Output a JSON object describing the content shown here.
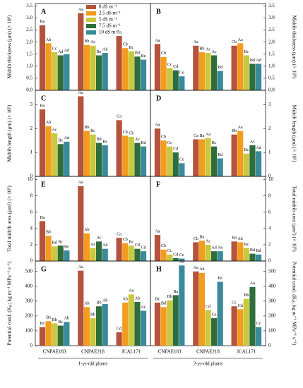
{
  "chart_data": {
    "type": "bar",
    "categories": [
      "CNPAE183",
      "CNPAE218",
      "JCAL171"
    ],
    "groups": [
      "1-yr-old plants",
      "2-yr-old plants"
    ],
    "series": [
      {
        "name": "0 dS m⁻¹",
        "color": "#b5533c"
      },
      {
        "name": "2.5 dS m⁻¹",
        "color": "#f39c1f"
      },
      {
        "name": "5 dS m⁻¹",
        "color": "#c9c83e"
      },
      {
        "name": "7.5 dS m⁻¹",
        "color": "#2f6e3c"
      },
      {
        "name": "10 dS m⁻¹",
        "color": "#3a8a9a"
      }
    ],
    "rows": [
      {
        "ylabel": "Midrib thickness (μm) (× 10³)",
        "ylim": [
          0,
          3.6
        ],
        "yticks": [
          {
            "value": 0,
            "label": "0.0"
          },
          0.5,
          {
            "value": 1,
            "label": "1.0"
          },
          1.5,
          {
            "value": 2,
            "label": "2.0"
          },
          2.5,
          {
            "value": 3,
            "label": "3.0"
          },
          3.5
        ],
        "panels": [
          {
            "label": "A",
            "series": [
              {
                "values": [
                  2.7,
                  3.2,
                  2.25
                ],
                "letters": [
                  "Ba",
                  "Aa",
                  "Ca"
                ]
              },
              {
                "values": [
                  1.95,
                  1.88,
                  1.75
                ],
                "letters": [
                  "Ab",
                  "Bb",
                  "Cb"
                ]
              },
              {
                "values": [
                  1.58,
                  1.85,
                  1.62
                ],
                "letters": [
                  "Cc",
                  "Ac",
                  "Bc"
                ]
              },
              {
                "values": [
                  1.45,
                  1.45,
                  1.4
                ],
                "letters": [
                  "Ad",
                  "Be",
                  "Bd"
                ]
              },
              {
                "values": [
                  1.5,
                  1.55,
                  1.27
                ],
                "letters": [
                  "Ad",
                  "Ad",
                  "Be"
                ]
              }
            ]
          },
          {
            "label": "B",
            "series": [
              {
                "values": [
                  1.92,
                  1.85,
                  1.85
                ],
                "letters": [
                  "Aa",
                  "Aa",
                  "Cb"
                ]
              },
              {
                "values": [
                  1.38,
                  1.58,
                  1.95
                ],
                "letters": [
                  "Cb",
                  "Bb",
                  "Aa"
                ]
              },
              {
                "values": [
                  0.92,
                  1.55,
                  1.45
                ],
                "letters": [
                  "Cc",
                  "Ac",
                  "Bc"
                ]
              },
              {
                "values": [
                  0.83,
                  1.45,
                  1.1
                ],
                "letters": [
                  "Cd",
                  "Ac",
                  "Bd"
                ]
              },
              {
                "values": [
                  0.58,
                  0.8,
                  1.1
                ],
                "letters": [
                  "Ce",
                  "Bd",
                  "Ad"
                ]
              }
            ]
          }
        ]
      },
      {
        "ylabel": "Midrib length (μm) (× 10³)",
        "ylim": [
          0,
          3.6
        ],
        "yticks": [
          0,
          1,
          2,
          3
        ],
        "panels": [
          {
            "label": "C",
            "series": [
              {
                "values": [
                  2.8,
                  3.35,
                  2.35
                ],
                "letters": [
                  "Ba",
                  "Aa",
                  "Ca"
                ]
              },
              {
                "values": [
                  2.1,
                  1.9,
                  1.7
                ],
                "letters": [
                  "Ab",
                  "Bb",
                  "Cb"
                ]
              },
              {
                "values": [
                  1.8,
                  1.75,
                  1.65
                ],
                "letters": [
                  "Ac",
                  "Bc",
                  "Cb"
                ]
              },
              {
                "values": [
                  1.35,
                  1.4,
                  1.4
                ],
                "letters": [
                  "Bc",
                  "Bd",
                  "Ac"
                ]
              },
              {
                "values": [
                  1.45,
                  1.3,
                  1.25
                ],
                "letters": [
                  "Ad",
                  "Be",
                  "Bd"
                ]
              }
            ]
          },
          {
            "label": "D",
            "series": [
              {
                "values": [
                  2.0,
                  1.55,
                  1.75
                ],
                "letters": [
                  "Aa",
                  "Ca",
                  "Bb"
                ]
              },
              {
                "values": [
                  1.5,
                  1.55,
                  1.9
                ],
                "letters": [
                  "Cb",
                  "Ba",
                  "Aa"
                ]
              },
              {
                "values": [
                  1.25,
                  1.6,
                  0.95
                ],
                "letters": [
                  "Cc",
                  "Aa",
                  "Bc"
                ]
              },
              {
                "values": [
                  1.0,
                  1.25,
                  1.3
                ],
                "letters": [
                  "Cd",
                  "Bc",
                  "Ac"
                ]
              },
              {
                "values": [
                  0.55,
                  0.75,
                  1.05
                ],
                "letters": [
                  "Ce",
                  "Bd",
                  "Ad"
                ]
              }
            ]
          }
        ]
      },
      {
        "ylabel": "Total midrib area (μm²) (× 10⁵)",
        "ylim": [
          0,
          10.4
        ],
        "yticks": [
          0,
          2,
          4,
          6,
          8,
          10
        ],
        "panels": [
          {
            "label": "E",
            "series": [
              {
                "values": [
                  4.9,
                  9.2,
                  2.85
                ],
                "letters": [
                  "Ba",
                  "Aa",
                  "Ca"
                ]
              },
              {
                "values": [
                  3.1,
                  3.4,
                  2.2
                ],
                "letters": [
                  "Bb",
                  "Ab",
                  "Cb"
                ]
              },
              {
                "values": [
                  1.8,
                  1.6,
                  1.9
                ],
                "letters": [
                  "Bd",
                  "Ae",
                  "Bc"
                ]
              },
              {
                "values": [
                  1.9,
                  2.4,
                  1.5
                ],
                "letters": [
                  "Bc",
                  "Ac",
                  "Cd"
                ]
              },
              {
                "values": [
                  1.3,
                  1.5,
                  1.2
                ],
                "letters": [
                  "Be",
                  "Ad",
                  "Cd"
                ]
              }
            ]
          },
          {
            "label": "F",
            "series": [
              {
                "values": [
                  3.2,
                  2.3,
                  2.4
                ],
                "letters": [
                  "Aa",
                  "Cb",
                  "Ba"
                ]
              },
              {
                "values": [
                  1.4,
                  2.5,
                  2.3
                ],
                "letters": [
                  "Cb",
                  "Ba",
                  "Ab"
                ]
              },
              {
                "values": [
                  0.8,
                  2.0,
                  1.6
                ],
                "letters": [
                  "Cc",
                  "Ac",
                  "Bc"
                ]
              },
              {
                "values": [
                  0.35,
                  1.2,
                  0.9
                ],
                "letters": [
                  "Cd",
                  "Ad",
                  "Bd"
                ]
              },
              {
                "values": [
                  0.3,
                  1.2,
                  0.8
                ],
                "letters": [
                  "Ce",
                  "Ae",
                  "Bd"
                ]
              }
            ]
          }
        ]
      },
      {
        "ylabel": "Potential cond. (Kₚ; kg m⁻¹ MPa⁻¹ s⁻¹)",
        "ylim": [
          0,
          570
        ],
        "yticks": [
          0,
          100,
          200,
          300,
          400,
          500
        ],
        "panels": [
          {
            "label": "G",
            "series": [
              {
                "values": [
                  125,
                  505,
                  90
                ],
                "letters": [
                  "Bc",
                  "Aa",
                  "Cd"
                ]
              },
              {
                "values": [
                  165,
                  260,
                  290
                ],
                "letters": [
                  "Ba",
                  "Ab",
                  "Ab"
                ]
              },
              {
                "values": [
                  150,
                  185,
                  345
                ],
                "letters": [
                  "Bb",
                  "Bb",
                  "Aa"
                ]
              },
              {
                "values": [
                  135,
                  265,
                  295
                ],
                "letters": [
                  "Bc",
                  "Bb",
                  "Ab"
                ]
              },
              {
                "values": [
                  160,
                  280,
                  235
                ],
                "letters": [
                  "Ab",
                  "Ab",
                  "Ac"
                ]
              }
            ]
          },
          {
            "label": "H",
            "series": [
              {
                "values": [
                  290,
                  500,
                  265
                ],
                "letters": [
                  "Bc",
                  "Aa",
                  "Cc"
                ]
              },
              {
                "values": [
                  260,
                  490,
                  245
                ],
                "letters": [
                  "Bd",
                  "Ab",
                  "Cd"
                ]
              },
              {
                "values": [
                  305,
                  240,
                  315
                ],
                "letters": [
                  "Bb",
                  "Cd",
                  "Bb"
                ]
              },
              {
                "values": [
                  340,
                  185,
                  395
                ],
                "letters": [
                  "Ba",
                  "Ce",
                  "Aa"
                ]
              },
              {
                "values": [
                  540,
                  430,
                  125
                ],
                "letters": [
                  "Aa",
                  "Bc",
                  "Cc"
                ]
              }
            ]
          }
        ]
      }
    ]
  }
}
